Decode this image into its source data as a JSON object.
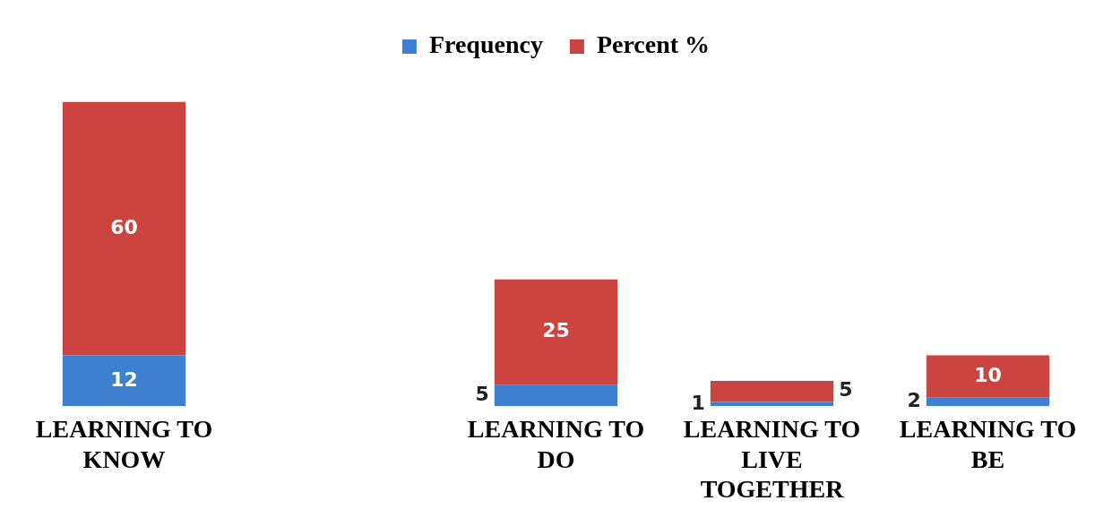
{
  "chart_data": {
    "type": "bar",
    "stacked": true,
    "categories": [
      "LEARNING TO KNOW",
      null,
      "LEARNING TO DO",
      "LEARNING TO LIVE TOGETHER",
      "LEARNING TO BE"
    ],
    "series": [
      {
        "name": "Frequency",
        "color": "#3f7fcf",
        "values": [
          12,
          null,
          5,
          1,
          2
        ]
      },
      {
        "name": "Percent %",
        "color": "#cc4440",
        "values": [
          60,
          null,
          25,
          5,
          10
        ]
      }
    ],
    "data_labels": true,
    "legend": "top",
    "tick_labels": "x"
  }
}
